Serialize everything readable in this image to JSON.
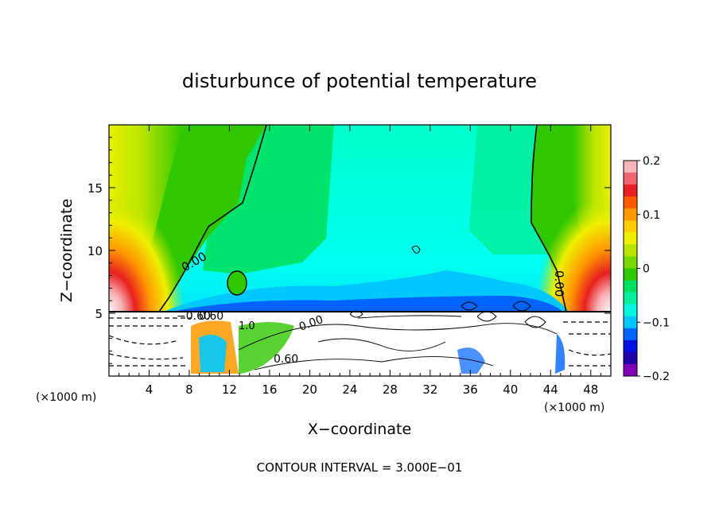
{
  "chart_data": {
    "type": "heatmap",
    "title": "disturbunce of potential temperature",
    "xlabel": "X−coordinate",
    "ylabel": "Z−coordinate",
    "x_unit_left": "(×1000 m)",
    "x_unit_right": "(×1000 m)",
    "footer": "CONTOUR INTERVAL = 3.000E−01",
    "xlim": [
      0,
      50
    ],
    "ylim": [
      0,
      20
    ],
    "x_ticks": [
      "4",
      "8",
      "12",
      "16",
      "20",
      "24",
      "28",
      "32",
      "36",
      "40",
      "44",
      "48"
    ],
    "x_tick_values": [
      4,
      8,
      12,
      16,
      20,
      24,
      28,
      32,
      36,
      40,
      44,
      48
    ],
    "y_ticks": [
      "5",
      "10",
      "15"
    ],
    "y_tick_values": [
      5,
      10,
      15
    ],
    "colorbar": {
      "range": [
        -0.2,
        0.2
      ],
      "ticks": [
        "0.2",
        "0.1",
        "0",
        "−0.1",
        "−0.2"
      ],
      "tick_values": [
        0.2,
        0.1,
        0,
        -0.1,
        -0.2
      ],
      "colors": [
        "#f8b4b8",
        "#f06470",
        "#e82020",
        "#ff5a00",
        "#ff9900",
        "#ffcc00",
        "#eef000",
        "#b8e400",
        "#78d800",
        "#30c800",
        "#00e060",
        "#00f0a0",
        "#00f8e0",
        "#00c8ff",
        "#0064ff",
        "#0010e0",
        "#2000a8",
        "#8000b8"
      ]
    },
    "contour_labels": [
      "0.00",
      "0.00",
      "−0.60",
      "0.60",
      "1.0",
      "0.00",
      "0.60"
    ],
    "fill_colors": {
      "upper_mid": "#00ffcc",
      "middle": "#00ff99",
      "lower_band": "#00c8ff",
      "low_region": "#ffffff"
    }
  }
}
